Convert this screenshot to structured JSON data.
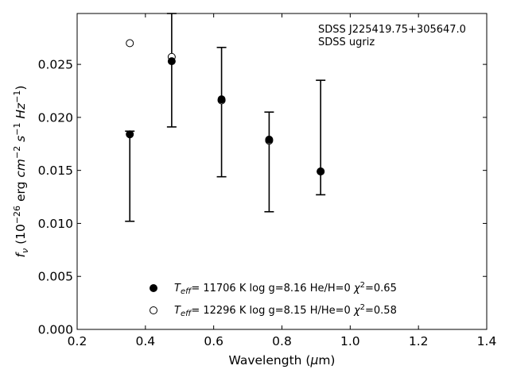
{
  "chart_data": {
    "type": "scatter",
    "xlabel": "Wavelength (μm)",
    "ylabel": "f_ν (10^-26 erg cm^-2 s^-1 Hz^-1)",
    "xlim": [
      0.2,
      1.4
    ],
    "ylim": [
      0.0,
      0.0298
    ],
    "x_ticks": [
      "0.2",
      "0.4",
      "0.6",
      "0.8",
      "1.0",
      "1.2",
      "1.4"
    ],
    "y_ticks": [
      "0.000",
      "0.005",
      "0.010",
      "0.015",
      "0.020",
      "0.025"
    ],
    "grid": false,
    "annotations": [
      "SDSS J225419.75+305647.0",
      "SDSS ugriz"
    ],
    "legend_position": "lower-center",
    "observed": {
      "x": [
        0.3543,
        0.477,
        0.6231,
        0.7625,
        0.9134
      ],
      "y_low": [
        0.0102,
        0.0191,
        0.0144,
        0.0111,
        0.0127
      ],
      "y_high": [
        0.0187,
        0.0298,
        0.0266,
        0.0205,
        0.0235
      ]
    },
    "series": [
      {
        "name": "He/H=0",
        "marker": "filled-circle",
        "label_teff": "= 11706 K",
        "label_logg": "log g=8.16",
        "label_comp": "He/H=0",
        "label_chi": "=0.65",
        "x": [
          0.3543,
          0.477,
          0.6231,
          0.7625,
          0.9134
        ],
        "y": [
          0.0184,
          0.0253,
          0.0217,
          0.0179,
          0.0149
        ]
      },
      {
        "name": "H/He=0",
        "marker": "open-circle",
        "label_teff": "= 12296 K",
        "label_logg": "log g=8.15",
        "label_comp": "H/He=0",
        "label_chi": "=0.58",
        "x": [
          0.3543,
          0.477,
          0.6231,
          0.7625,
          0.9134
        ],
        "y": [
          0.027,
          0.0257,
          0.0216,
          0.0178,
          0.0149
        ]
      }
    ]
  }
}
